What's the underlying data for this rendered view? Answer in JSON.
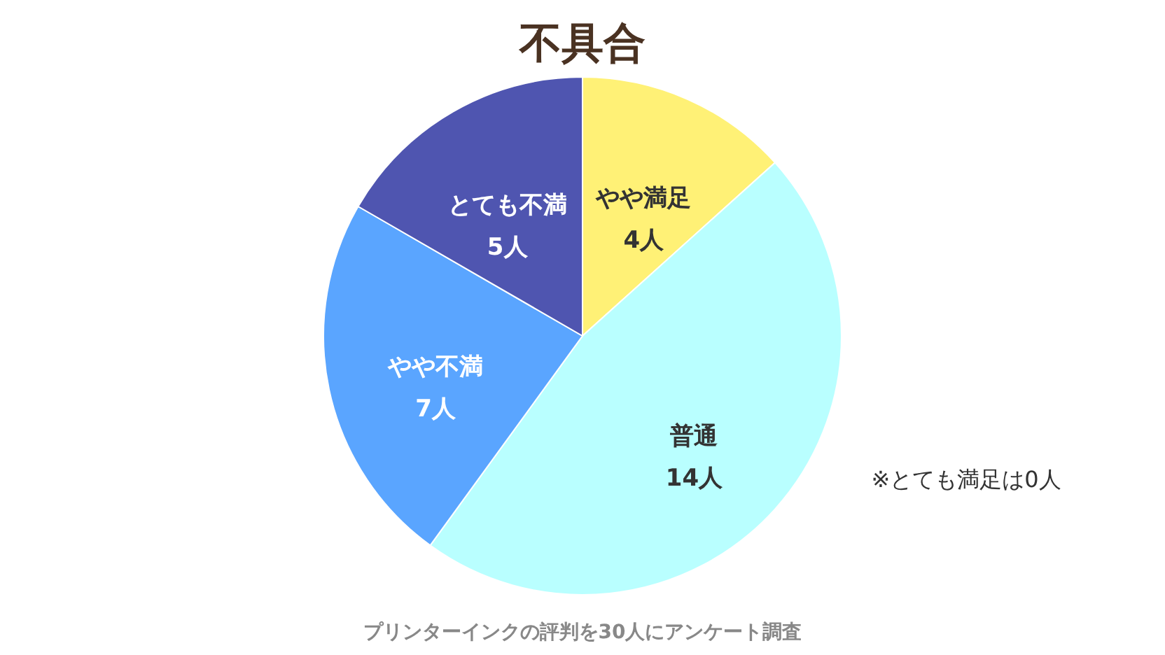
{
  "chart_data": {
    "type": "pie",
    "title": "不具合",
    "categories": [
      "やや満足",
      "普通",
      "やや不満",
      "とても不満"
    ],
    "values": [
      4,
      14,
      7,
      5
    ],
    "value_labels": [
      "4人",
      "14人",
      "7人",
      "5人"
    ],
    "colors": [
      "#fff176",
      "#b9ffff",
      "#5aa5ff",
      "#4f55b0"
    ],
    "annotations": [
      "※とても満足は0人",
      "プリンターインクの評判を30人にアンケート調査"
    ]
  }
}
